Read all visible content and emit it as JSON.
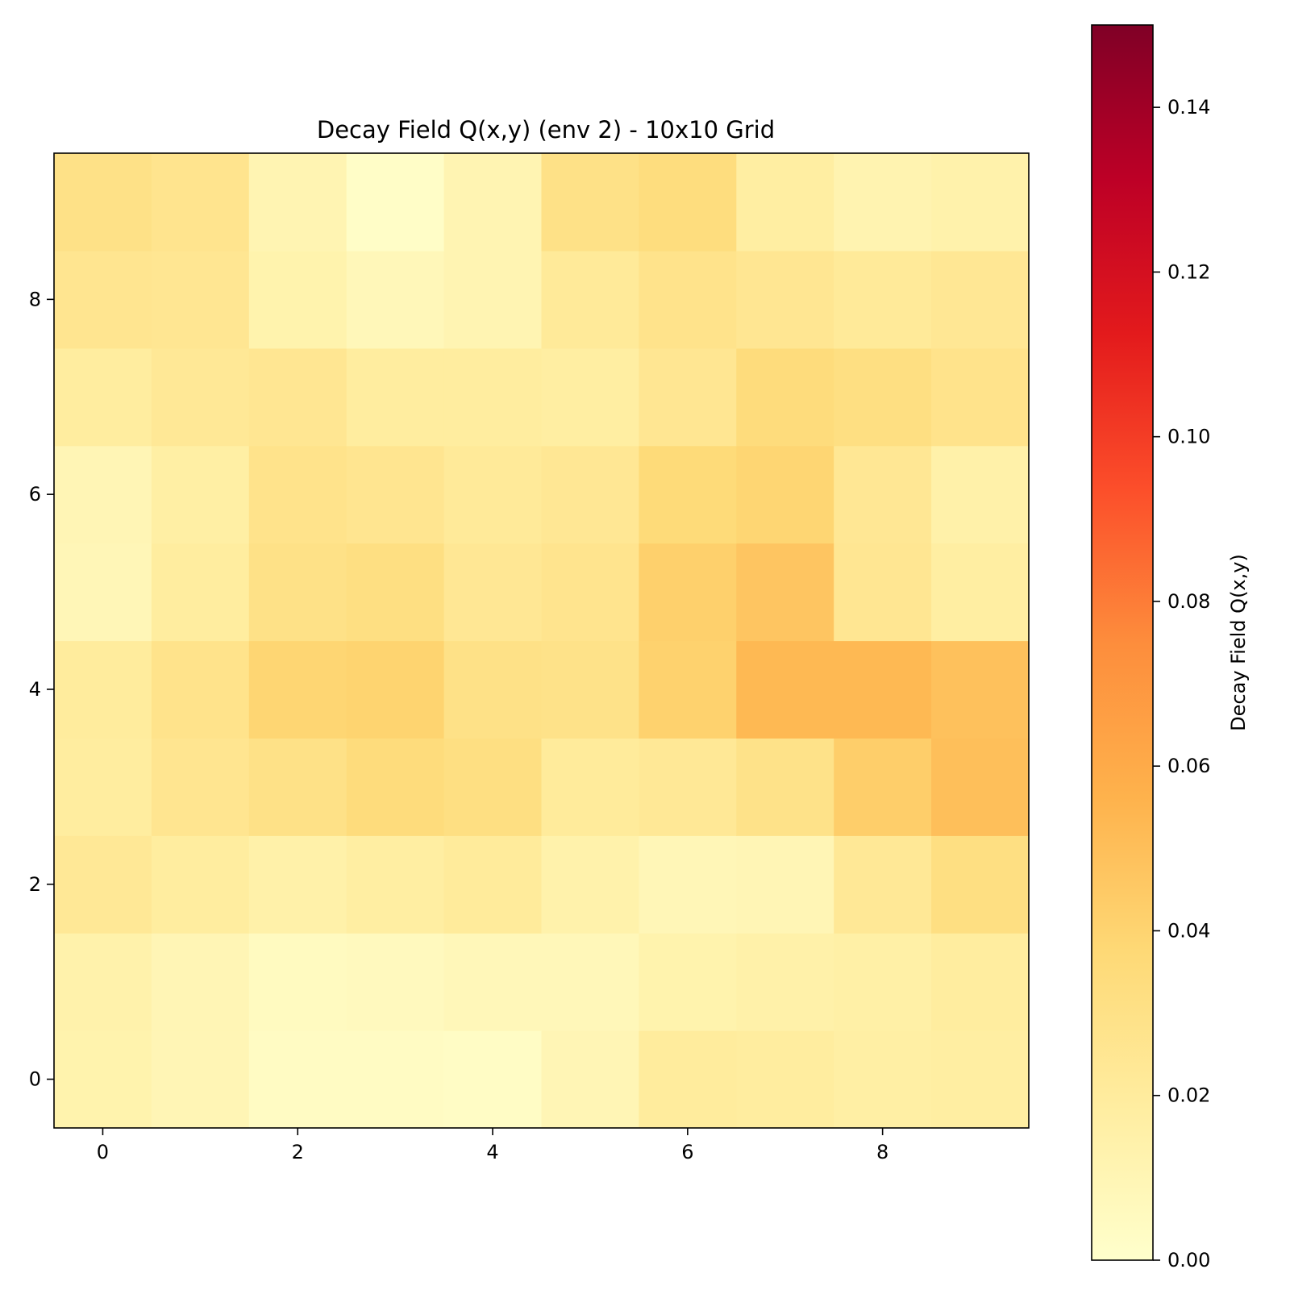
{
  "chart_data": {
    "type": "heatmap",
    "title": "Decay Field Q(x,y) (env 2) - 10x10 Grid",
    "xlabel": "",
    "ylabel": "",
    "x_ticks": [
      "0",
      "2",
      "4",
      "6",
      "8"
    ],
    "y_ticks": [
      "0",
      "2",
      "4",
      "6",
      "8"
    ],
    "xlim": [
      -0.5,
      9.5
    ],
    "ylim": [
      -0.5,
      9.5
    ],
    "origin": "lower",
    "colormap": "YlOrRd",
    "colorbar": {
      "label": "Decay Field Q(x,y)",
      "range": [
        0.0,
        0.15
      ],
      "ticks": [
        "0.00",
        "0.02",
        "0.04",
        "0.06",
        "0.08",
        "0.10",
        "0.12",
        "0.14"
      ]
    },
    "rows_by_y": [
      [
        0.013,
        0.01,
        0.004,
        0.004,
        0.003,
        0.01,
        0.02,
        0.019,
        0.017,
        0.018
      ],
      [
        0.014,
        0.01,
        0.005,
        0.006,
        0.008,
        0.008,
        0.013,
        0.015,
        0.016,
        0.019
      ],
      [
        0.023,
        0.019,
        0.015,
        0.018,
        0.021,
        0.014,
        0.009,
        0.01,
        0.023,
        0.032
      ],
      [
        0.019,
        0.026,
        0.03,
        0.035,
        0.032,
        0.021,
        0.023,
        0.029,
        0.043,
        0.05
      ],
      [
        0.02,
        0.028,
        0.039,
        0.04,
        0.03,
        0.029,
        0.041,
        0.053,
        0.053,
        0.049
      ],
      [
        0.009,
        0.019,
        0.03,
        0.032,
        0.024,
        0.027,
        0.042,
        0.047,
        0.025,
        0.018
      ],
      [
        0.01,
        0.017,
        0.028,
        0.026,
        0.022,
        0.024,
        0.036,
        0.039,
        0.024,
        0.015
      ],
      [
        0.019,
        0.023,
        0.025,
        0.019,
        0.019,
        0.018,
        0.025,
        0.035,
        0.032,
        0.028
      ],
      [
        0.026,
        0.025,
        0.013,
        0.008,
        0.011,
        0.022,
        0.028,
        0.025,
        0.022,
        0.024
      ],
      [
        0.03,
        0.027,
        0.011,
        0.002,
        0.011,
        0.03,
        0.034,
        0.018,
        0.012,
        0.014
      ]
    ]
  }
}
